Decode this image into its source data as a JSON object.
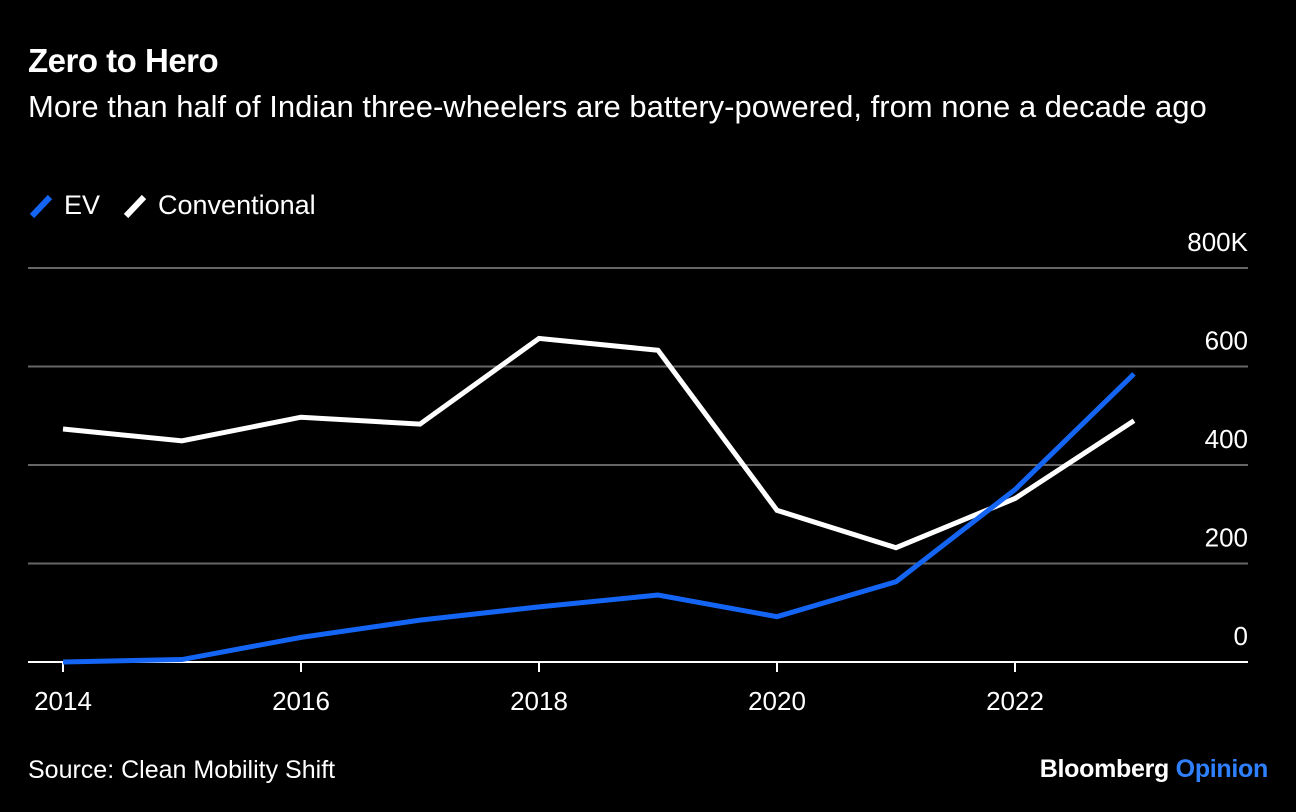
{
  "chart_data": {
    "type": "line",
    "title": "Zero to Hero",
    "subtitle": "More than half of Indian three-wheelers are battery-powered, from none a decade ago",
    "x": [
      2014,
      2015,
      2016,
      2017,
      2018,
      2019,
      2020,
      2021,
      2022,
      2023
    ],
    "x_tick_labels": [
      "2014",
      "2016",
      "2018",
      "2020",
      "2022"
    ],
    "y_tick_labels": [
      "0",
      "200",
      "400",
      "600",
      "800K"
    ],
    "y_ticks": [
      0,
      200,
      400,
      600,
      800
    ],
    "ylim": [
      0,
      800
    ],
    "xlim": [
      2014,
      2024.0
    ],
    "series": [
      {
        "name": "EV",
        "color": "#1565f5",
        "values": [
          0,
          5,
          50,
          85,
          112,
          136,
          92,
          163,
          350,
          585
        ]
      },
      {
        "name": "Conventional",
        "color": "#ffffff",
        "values": [
          473,
          449,
          497,
          483,
          657,
          633,
          308,
          232,
          332,
          490
        ]
      }
    ],
    "grid": "horizontal",
    "legend_position": "top-left",
    "y_axis_side": "right"
  },
  "legend": {
    "ev_label": "EV",
    "conventional_label": "Conventional"
  },
  "footer": {
    "source": "Source: Clean Mobility Shift",
    "brand_main": "Bloomberg",
    "brand_accent": "Opinion"
  }
}
